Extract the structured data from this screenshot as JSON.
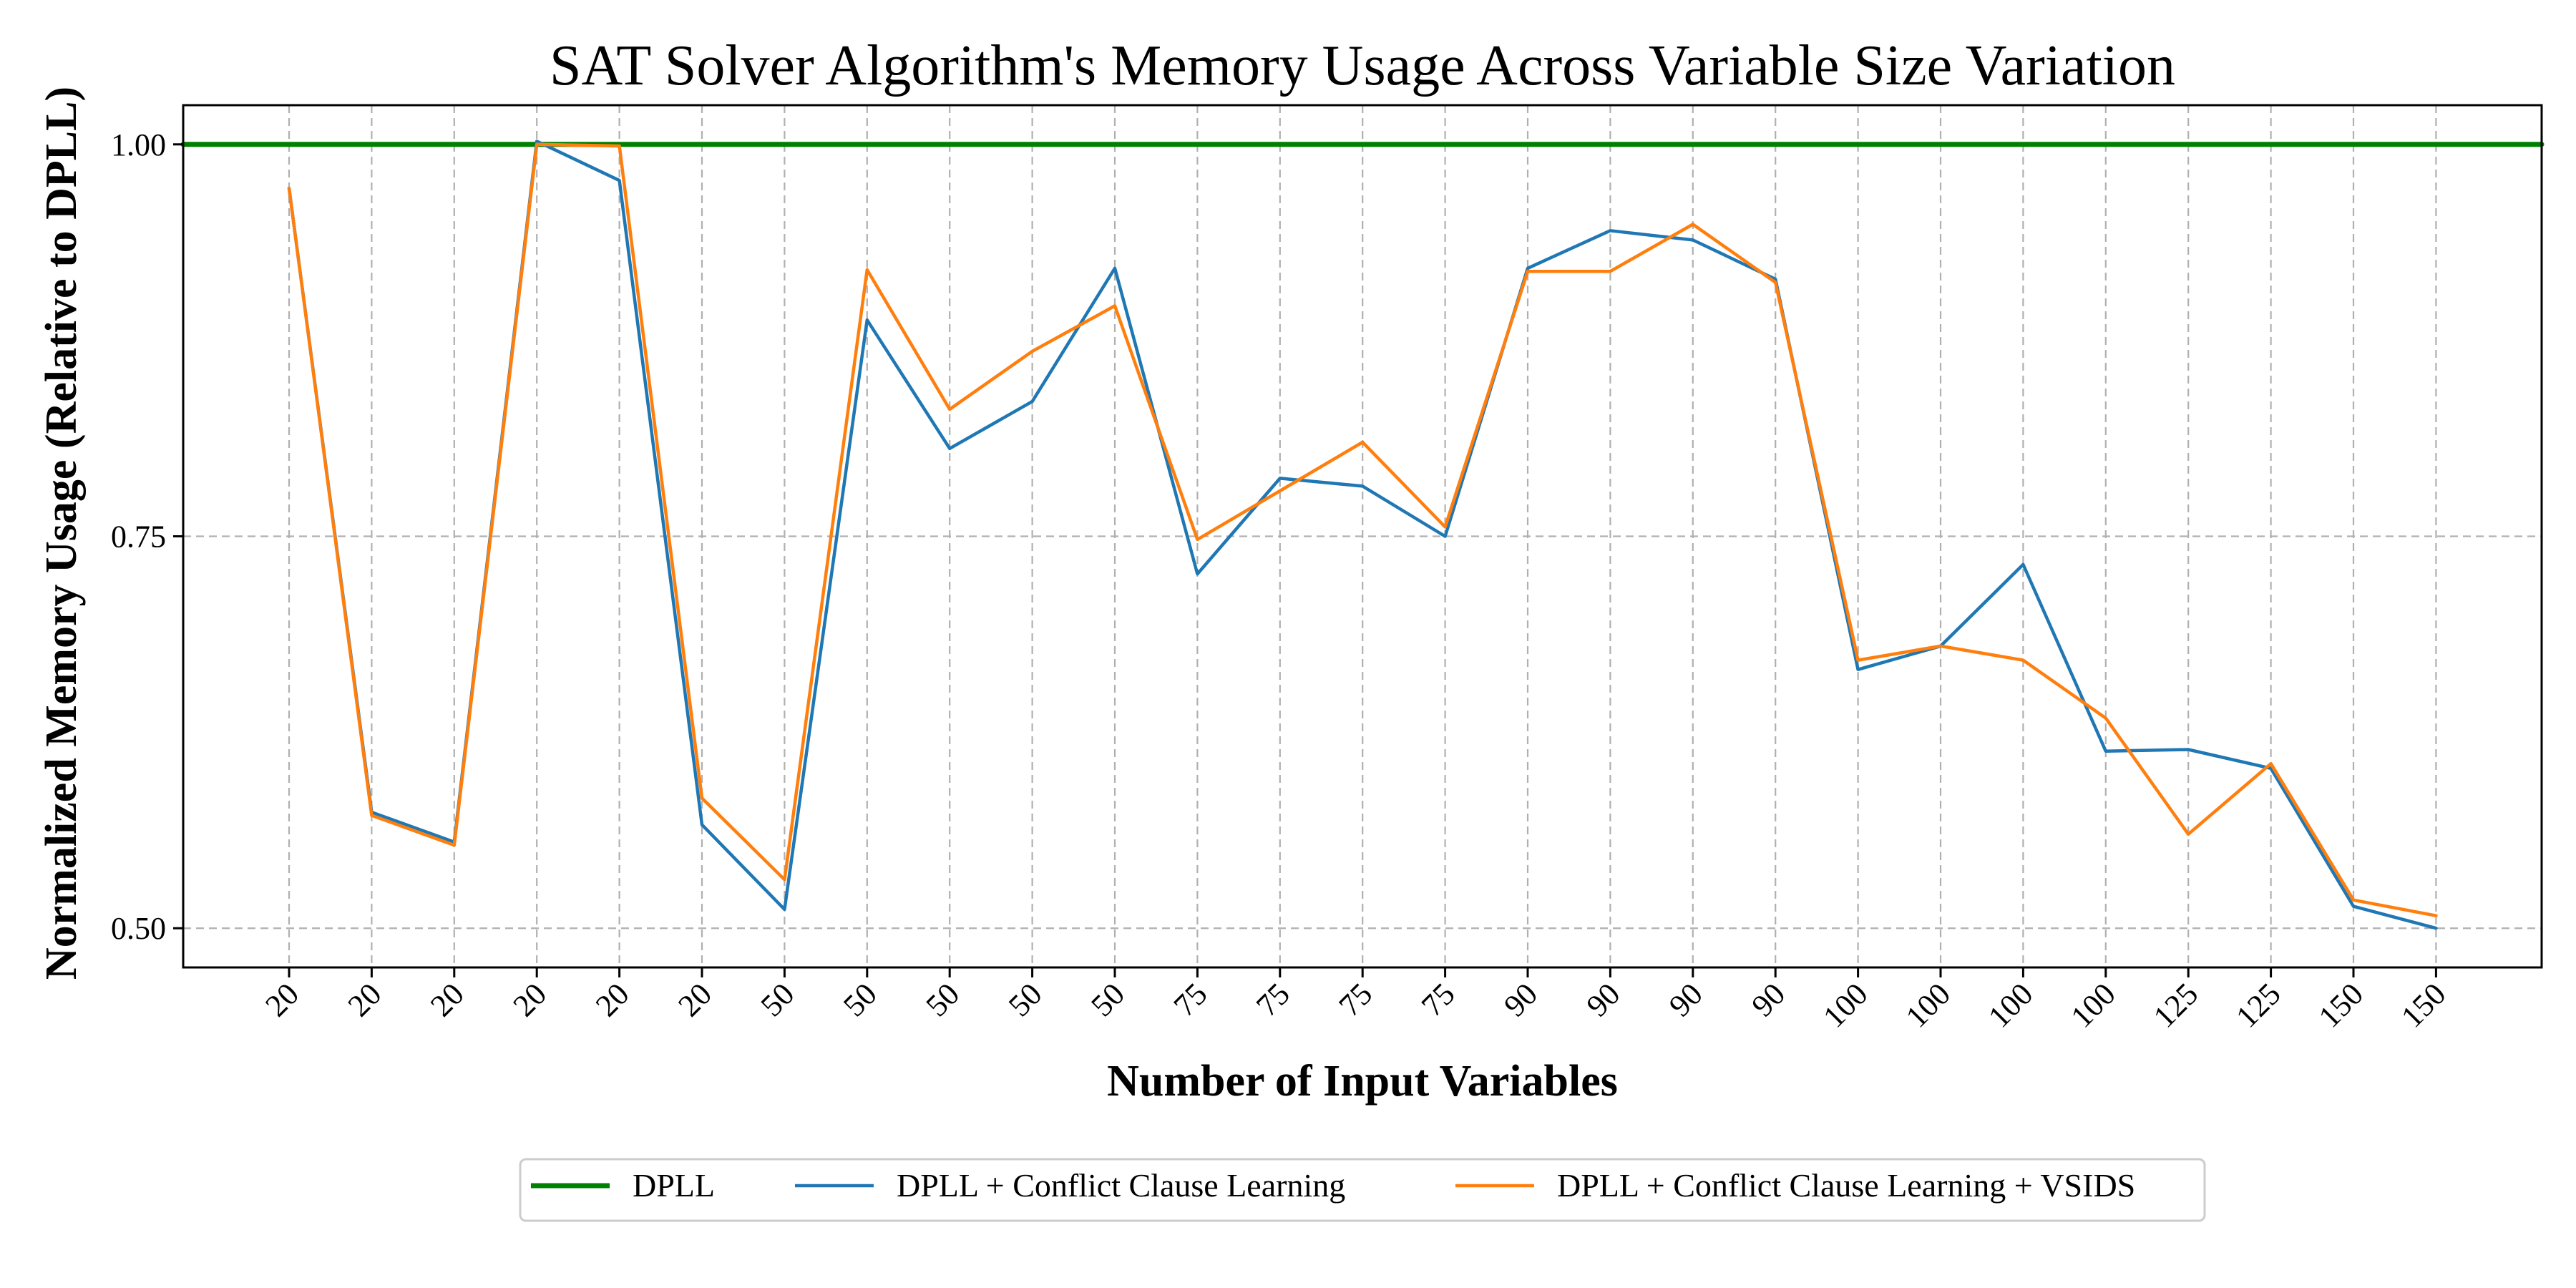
{
  "chart_data": {
    "type": "line",
    "title": "SAT Solver Algorithm's Memory Usage Across Variable Size Variation",
    "xlabel": "Number of Input Variables",
    "ylabel": "Normalized Memory Usage (Relative to DPLL)",
    "x": [
      "20",
      "20",
      "20",
      "20",
      "20",
      "20",
      "50",
      "50",
      "50",
      "50",
      "50",
      "75",
      "75",
      "75",
      "75",
      "90",
      "90",
      "90",
      "90",
      "100",
      "100",
      "100",
      "100",
      "125",
      "125",
      "150",
      "150"
    ],
    "ylim": [
      0.475,
      1.025
    ],
    "yticks": [
      "0.50",
      "0.75",
      "1.00"
    ],
    "grid": true,
    "legend_position": "bottom-center",
    "series": [
      {
        "name": "DPLL",
        "color": "#008000",
        "values": [
          1,
          1,
          1,
          1,
          1,
          1,
          1,
          1,
          1,
          1,
          1,
          1,
          1,
          1,
          1,
          1,
          1,
          1,
          1,
          1,
          1,
          1,
          1,
          1,
          1,
          1,
          1
        ]
      },
      {
        "name": "DPLL + Conflict Clause Learning",
        "color": "#1f77b4",
        "values": [
          0.972,
          0.574,
          0.555,
          1.002,
          0.977,
          0.566,
          0.512,
          0.888,
          0.806,
          0.836,
          0.921,
          0.726,
          0.787,
          0.782,
          0.75,
          0.921,
          0.945,
          0.939,
          0.914,
          0.665,
          0.68,
          0.732,
          0.613,
          0.614,
          0.602,
          0.514,
          0.5
        ]
      },
      {
        "name": "DPLL + Conflict Clause Learning + VSIDS",
        "color": "#ff7f0e",
        "values": [
          0.972,
          0.572,
          0.553,
          1.0,
          0.999,
          0.583,
          0.531,
          0.92,
          0.831,
          0.868,
          0.897,
          0.748,
          0.779,
          0.81,
          0.756,
          0.919,
          0.919,
          0.949,
          0.912,
          0.671,
          0.68,
          0.671,
          0.634,
          0.56,
          0.605,
          0.518,
          0.508
        ]
      }
    ]
  }
}
